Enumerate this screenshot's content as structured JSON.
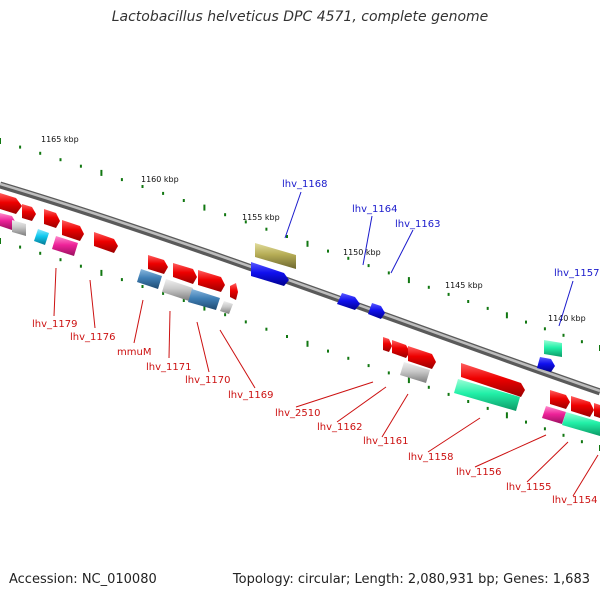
{
  "title": "Lactobacillus helveticus DPC 4571, complete genome",
  "footer": {
    "accession": "Accession: NC_010080",
    "topology": "Topology: circular; Length: 2,080,931 bp; Genes: 1,683"
  },
  "scale_labels": [
    "1165 kbp",
    "1160 kbp",
    "1155 kbp",
    "1150 kbp",
    "1145 kbp",
    "1140 kbp"
  ],
  "gene_labels_top": [
    "lhv_1168",
    "lhv_1164",
    "lhv_1163",
    "lhv_1157"
  ],
  "gene_labels_bottom": [
    "lhv_1179",
    "lhv_1176",
    "mmuM",
    "lhv_1171",
    "lhv_1170",
    "lhv_1169",
    "lhv_2510",
    "lhv_1162",
    "lhv_1161",
    "lhv_1158",
    "lhv_1156",
    "lhv_1155",
    "lhv_1154"
  ],
  "colors": {
    "backbone": "#8a8a8a",
    "gene_red": "#ee0000",
    "gene_blue": "#1010ee",
    "gene_green": "#22f0a8",
    "gene_pink": "#ee2299",
    "gene_grey": "#c8c8c8",
    "gene_steel": "#3f7fb5",
    "gene_cyan": "#10c8ee",
    "gene_olive": "#b5ac55",
    "tick_green": "#117711",
    "label_red": "#cc1111",
    "label_blue": "#1a1acc"
  }
}
